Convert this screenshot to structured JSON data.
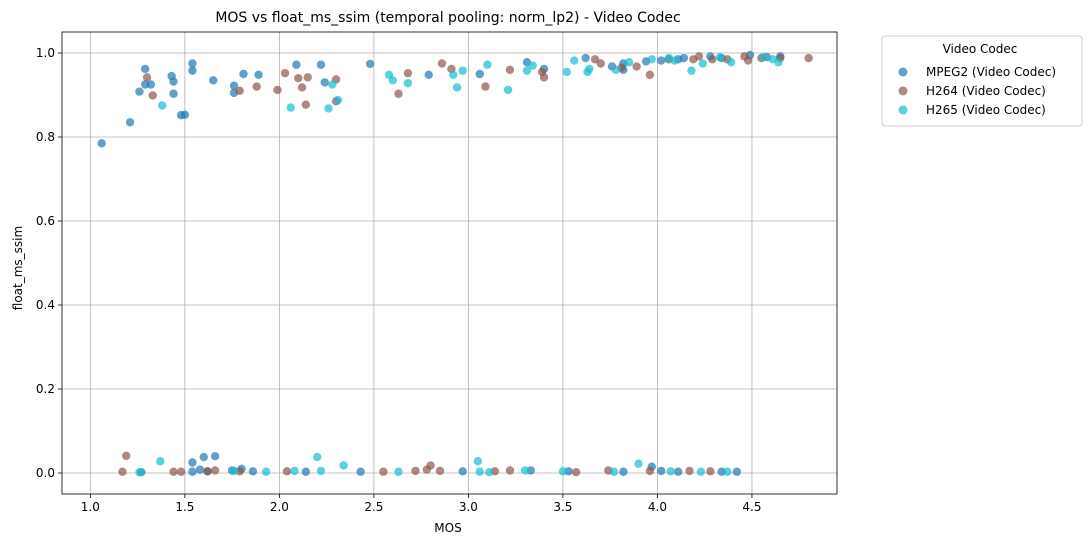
{
  "chart_data": {
    "type": "scatter",
    "title": "MOS vs float_ms_ssim (temporal pooling: norm_lp2) - Video Codec",
    "xlabel": "MOS",
    "ylabel": "float_ms_ssim",
    "xlim": [
      0.85,
      4.95
    ],
    "ylim": [
      -0.05,
      1.05
    ],
    "xticks": [
      "1.0",
      "1.5",
      "2.0",
      "2.5",
      "3.0",
      "3.5",
      "4.0",
      "4.5"
    ],
    "xtick_values": [
      1.0,
      1.5,
      2.0,
      2.5,
      3.0,
      3.5,
      4.0,
      4.5
    ],
    "yticks": [
      "0.0",
      "0.2",
      "0.4",
      "0.6",
      "0.8",
      "1.0"
    ],
    "ytick_values": [
      0.0,
      0.2,
      0.4,
      0.6,
      0.8,
      1.0
    ],
    "grid": true,
    "legend": {
      "title": "Video Codec",
      "placement": "outside-top-right"
    },
    "series": [
      {
        "name": "MPEG2 (Video Codec)",
        "color": "#1f77b4",
        "points": [
          [
            1.06,
            0.785
          ],
          [
            1.21,
            0.835
          ],
          [
            1.26,
            0.908
          ],
          [
            1.29,
            0.925
          ],
          [
            1.29,
            0.962
          ],
          [
            1.32,
            0.925
          ],
          [
            1.43,
            0.945
          ],
          [
            1.44,
            0.932
          ],
          [
            1.44,
            0.903
          ],
          [
            1.48,
            0.852
          ],
          [
            1.5,
            0.853
          ],
          [
            1.54,
            0.975
          ],
          [
            1.54,
            0.958
          ],
          [
            1.65,
            0.935
          ],
          [
            1.76,
            0.922
          ],
          [
            1.76,
            0.905
          ],
          [
            1.81,
            0.95
          ],
          [
            1.89,
            0.948
          ],
          [
            2.09,
            0.972
          ],
          [
            2.22,
            0.972
          ],
          [
            2.24,
            0.93
          ],
          [
            2.48,
            0.974
          ],
          [
            2.79,
            0.948
          ],
          [
            3.06,
            0.95
          ],
          [
            3.31,
            0.978
          ],
          [
            3.4,
            0.962
          ],
          [
            3.62,
            0.988
          ],
          [
            3.76,
            0.968
          ],
          [
            3.82,
            0.975
          ],
          [
            3.82,
            0.96
          ],
          [
            3.94,
            0.98
          ],
          [
            4.02,
            0.982
          ],
          [
            4.11,
            0.985
          ],
          [
            4.14,
            0.988
          ],
          [
            4.28,
            0.992
          ],
          [
            4.34,
            0.988
          ],
          [
            4.49,
            0.995
          ],
          [
            4.58,
            0.99
          ],
          [
            4.65,
            0.992
          ],
          [
            1.27,
            0.002
          ],
          [
            1.54,
            0.025
          ],
          [
            1.54,
            0.003
          ],
          [
            1.58,
            0.008
          ],
          [
            1.6,
            0.038
          ],
          [
            1.62,
            0.004
          ],
          [
            1.66,
            0.04
          ],
          [
            1.75,
            0.006
          ],
          [
            1.8,
            0.01
          ],
          [
            1.86,
            0.004
          ],
          [
            2.14,
            0.003
          ],
          [
            2.43,
            0.003
          ],
          [
            2.97,
            0.004
          ],
          [
            3.33,
            0.006
          ],
          [
            3.53,
            0.004
          ],
          [
            3.82,
            0.003
          ],
          [
            3.97,
            0.015
          ],
          [
            4.02,
            0.005
          ],
          [
            4.11,
            0.003
          ],
          [
            4.34,
            0.003
          ],
          [
            4.42,
            0.003
          ]
        ]
      },
      {
        "name": "H264 (Video Codec)",
        "color": "#8c564b",
        "points": [
          [
            1.3,
            0.942
          ],
          [
            1.33,
            0.899
          ],
          [
            1.79,
            0.91
          ],
          [
            1.88,
            0.92
          ],
          [
            1.99,
            0.912
          ],
          [
            2.03,
            0.952
          ],
          [
            2.1,
            0.94
          ],
          [
            2.12,
            0.918
          ],
          [
            2.14,
            0.877
          ],
          [
            2.15,
            0.942
          ],
          [
            2.3,
            0.937
          ],
          [
            2.3,
            0.885
          ],
          [
            2.63,
            0.903
          ],
          [
            2.68,
            0.952
          ],
          [
            2.86,
            0.975
          ],
          [
            2.91,
            0.962
          ],
          [
            3.09,
            0.92
          ],
          [
            3.22,
            0.96
          ],
          [
            3.39,
            0.955
          ],
          [
            3.4,
            0.942
          ],
          [
            3.67,
            0.985
          ],
          [
            3.7,
            0.975
          ],
          [
            3.81,
            0.965
          ],
          [
            3.89,
            0.968
          ],
          [
            3.96,
            0.948
          ],
          [
            4.06,
            0.985
          ],
          [
            4.19,
            0.985
          ],
          [
            4.22,
            0.992
          ],
          [
            4.29,
            0.985
          ],
          [
            4.37,
            0.985
          ],
          [
            4.46,
            0.992
          ],
          [
            4.48,
            0.982
          ],
          [
            4.55,
            0.988
          ],
          [
            4.65,
            0.988
          ],
          [
            4.8,
            0.988
          ],
          [
            1.17,
            0.003
          ],
          [
            1.19,
            0.041
          ],
          [
            1.44,
            0.003
          ],
          [
            1.48,
            0.003
          ],
          [
            1.62,
            0.004
          ],
          [
            1.66,
            0.006
          ],
          [
            1.79,
            0.004
          ],
          [
            2.04,
            0.004
          ],
          [
            2.55,
            0.003
          ],
          [
            2.72,
            0.005
          ],
          [
            2.78,
            0.008
          ],
          [
            2.8,
            0.018
          ],
          [
            2.85,
            0.005
          ],
          [
            3.14,
            0.004
          ],
          [
            3.22,
            0.006
          ],
          [
            3.57,
            0.002
          ],
          [
            3.74,
            0.006
          ],
          [
            3.96,
            0.005
          ],
          [
            4.17,
            0.005
          ],
          [
            4.28,
            0.004
          ]
        ]
      },
      {
        "name": "H265 (Video Codec)",
        "color": "#17becf",
        "points": [
          [
            1.38,
            0.875
          ],
          [
            2.06,
            0.87
          ],
          [
            2.26,
            0.868
          ],
          [
            2.28,
            0.925
          ],
          [
            2.31,
            0.888
          ],
          [
            2.58,
            0.948
          ],
          [
            2.6,
            0.935
          ],
          [
            2.68,
            0.928
          ],
          [
            2.92,
            0.948
          ],
          [
            2.94,
            0.918
          ],
          [
            2.97,
            0.958
          ],
          [
            3.1,
            0.972
          ],
          [
            3.21,
            0.912
          ],
          [
            3.31,
            0.958
          ],
          [
            3.34,
            0.97
          ],
          [
            3.52,
            0.955
          ],
          [
            3.56,
            0.982
          ],
          [
            3.63,
            0.955
          ],
          [
            3.64,
            0.962
          ],
          [
            3.78,
            0.96
          ],
          [
            3.85,
            0.978
          ],
          [
            3.97,
            0.985
          ],
          [
            4.06,
            0.988
          ],
          [
            4.09,
            0.982
          ],
          [
            4.18,
            0.958
          ],
          [
            4.24,
            0.975
          ],
          [
            4.33,
            0.99
          ],
          [
            4.39,
            0.978
          ],
          [
            4.56,
            0.99
          ],
          [
            4.61,
            0.985
          ],
          [
            4.64,
            0.978
          ],
          [
            1.26,
            0.002
          ],
          [
            1.37,
            0.028
          ],
          [
            1.76,
            0.005
          ],
          [
            1.93,
            0.003
          ],
          [
            2.08,
            0.005
          ],
          [
            2.2,
            0.038
          ],
          [
            2.22,
            0.005
          ],
          [
            2.34,
            0.018
          ],
          [
            2.63,
            0.003
          ],
          [
            3.05,
            0.028
          ],
          [
            3.06,
            0.003
          ],
          [
            3.11,
            0.002
          ],
          [
            3.3,
            0.006
          ],
          [
            3.5,
            0.004
          ],
          [
            3.77,
            0.003
          ],
          [
            3.9,
            0.022
          ],
          [
            4.07,
            0.004
          ],
          [
            4.23,
            0.003
          ],
          [
            4.37,
            0.003
          ]
        ]
      }
    ]
  }
}
